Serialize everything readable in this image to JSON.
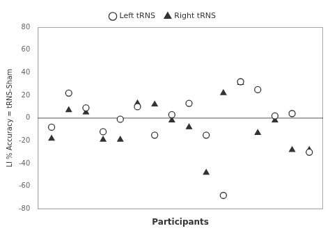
{
  "chart_data": {
    "type": "scatter",
    "xlabel": "Participants",
    "ylabel": "LI % Accuracy = tRNS-Sham",
    "series": [
      {
        "name": "Left tRNS",
        "color": "#333333",
        "marker": "open_circle",
        "x": [
          1,
          2,
          3,
          4,
          5,
          6,
          7,
          8,
          9,
          10,
          11,
          12,
          13,
          14,
          15,
          16
        ],
        "values": [
          -8,
          22,
          9,
          -12,
          -1,
          10,
          -15,
          3,
          13,
          -15,
          -68,
          32,
          25,
          2,
          4,
          -30
        ]
      },
      {
        "name": "Right tRNS",
        "color": "#333333",
        "marker": "triangle",
        "x": [
          1,
          2,
          3,
          4,
          5,
          6,
          7,
          8,
          9,
          10,
          11,
          12,
          13,
          14,
          15,
          16
        ],
        "values": [
          -18,
          7,
          5,
          -19,
          -19,
          13,
          12,
          -2,
          -8,
          -48,
          22,
          31,
          -13,
          -2,
          -28,
          -28
        ]
      }
    ],
    "xlim": [
      0.2,
      16.8
    ],
    "xticks": [],
    "ylim": [
      -80,
      80
    ],
    "yticks": [
      -80,
      -60,
      -40,
      -20,
      0,
      20,
      40,
      60,
      80
    ],
    "hline": {
      "y": 0,
      "color": "#555555"
    },
    "grid": false,
    "legend": "top",
    "tick_labels": "y"
  }
}
